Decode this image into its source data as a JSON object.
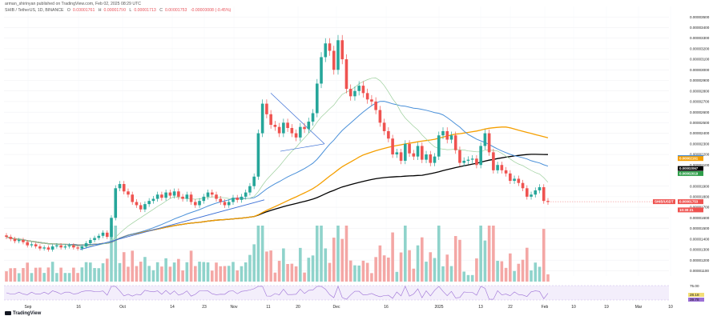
{
  "header": {
    "published_line": "arman_shirinyan published on TradingView.com, Feb 02, 2025 08:29 UTC",
    "symbol_line": "SHIB / TetherUS, 1D, BINANCE",
    "ohlc": [
      {
        "label": "O",
        "value": "0.00001761"
      },
      {
        "label": "H",
        "value": "0.00001790"
      },
      {
        "label": "L",
        "value": "0.00001713"
      },
      {
        "label": "C",
        "value": "0.00001753"
      },
      {
        "label": "",
        "value": "-0.00000008 (-0.45%)"
      }
    ]
  },
  "logo_text": "TradingView",
  "colors": {
    "up": "#26a69a",
    "down": "#ef5350",
    "vol_up": "#8fd3cb",
    "vol_down": "#f4a7a5",
    "ma_black": "#000000",
    "ma_orange": "#f59f00",
    "ma_blue": "#4a90d9",
    "ma_green": "#9ccf9c",
    "trendline": "#3b6fd6",
    "rsi": "#9c6fd6"
  },
  "chart_data": {
    "type": "candlestick",
    "x_ticks": [
      "Sep",
      "16",
      "Oct",
      "14",
      "23",
      "Nov",
      "11",
      "20",
      "Dec",
      "16",
      "2025",
      "13",
      "22",
      "Feb",
      "10",
      "19",
      "Mar",
      "10"
    ],
    "y_ticks": [
      "0.00003500",
      "0.00003400",
      "0.00003300",
      "0.00003200",
      "0.00003100",
      "0.00003000",
      "0.00002900",
      "0.00002800",
      "0.00002700",
      "0.00002600",
      "0.00002500",
      "0.00002400",
      "0.00002300",
      "0.00002200",
      "0.00002100",
      "0.00001900",
      "0.00001800",
      "0.00001700",
      "0.00001600",
      "0.00001500",
      "0.00001400",
      "0.00001300",
      "0.00001200",
      "0.00001100"
    ],
    "ylim": [
      1.05e-05,
      3.6e-05
    ],
    "price_tags": [
      {
        "label": "0.00002170",
        "value": 2.17e-05,
        "color": "#4a90d9"
      },
      {
        "label": "0.00002161",
        "value": 2.161e-05,
        "color": "#f59f00"
      },
      {
        "label": "0.00002067",
        "value": 2.067e-05,
        "color": "#000000"
      },
      {
        "label": "0.00002019",
        "value": 2.019e-05,
        "color": "#2e9e4a"
      },
      {
        "label": "0.00001753",
        "value": 1.753e-05,
        "color": "#ef5350"
      },
      {
        "label": "10:30:21",
        "value": 1.713e-05,
        "color": "#ef5350"
      }
    ],
    "left_tag": {
      "label": "SHIB/USDT",
      "value": 1.753e-05
    },
    "candles_close": [
      1.42e-05,
      1.4e-05,
      1.38e-05,
      1.39e-05,
      1.37e-05,
      1.34e-05,
      1.35e-05,
      1.33e-05,
      1.31e-05,
      1.32e-05,
      1.3e-05,
      1.33e-05,
      1.34e-05,
      1.32e-05,
      1.33e-05,
      1.34e-05,
      1.32e-05,
      1.31e-05,
      1.33e-05,
      1.36e-05,
      1.39e-05,
      1.41e-05,
      1.43e-05,
      1.46e-05,
      1.42e-05,
      1.6e-05,
      1.88e-05,
      1.92e-05,
      1.85e-05,
      1.82e-05,
      1.75e-05,
      1.72e-05,
      1.68e-05,
      1.73e-05,
      1.76e-05,
      1.78e-05,
      1.82e-05,
      1.79e-05,
      1.84e-05,
      1.81e-05,
      1.85e-05,
      1.8e-05,
      1.78e-05,
      1.82e-05,
      1.75e-05,
      1.72e-05,
      1.76e-05,
      1.8e-05,
      1.84e-05,
      1.82e-05,
      1.78e-05,
      1.75e-05,
      1.72e-05,
      1.75e-05,
      1.79e-05,
      1.77e-05,
      1.8e-05,
      1.84e-05,
      1.9e-05,
      1.99e-05,
      2.4e-05,
      2.68e-05,
      2.58e-05,
      2.48e-05,
      2.46e-05,
      2.4e-05,
      2.5e-05,
      2.45e-05,
      2.4e-05,
      2.36e-05,
      2.46e-05,
      2.44e-05,
      2.51e-05,
      2.59e-05,
      2.87e-05,
      3.12e-05,
      3.25e-05,
      3.18e-05,
      3e-05,
      3.28e-05,
      3.1e-05,
      2.82e-05,
      2.75e-05,
      2.8e-05,
      2.85e-05,
      2.78e-05,
      2.72e-05,
      2.7e-05,
      2.62e-05,
      2.5e-05,
      2.42e-05,
      2.35e-05,
      2.2e-05,
      2.22e-05,
      2.14e-05,
      2.3e-05,
      2.21e-05,
      2.18e-05,
      2.28e-05,
      2.15e-05,
      2.2e-05,
      2.12e-05,
      2.18e-05,
      2.38e-05,
      2.42e-05,
      2.34e-05,
      2.38e-05,
      2.24e-05,
      2.12e-05,
      2.14e-05,
      2.15e-05,
      2.16e-05,
      2.1e-05,
      2.28e-05,
      2.4e-05,
      2.22e-05,
      2.05e-05,
      2.1e-05,
      2.05e-05,
      2.02e-05,
      1.95e-05,
      1.97e-05,
      1.93e-05,
      1.88e-05,
      1.8e-05,
      1.82e-05,
      1.86e-05,
      1.89e-05,
      1.76e-05,
      1.75e-05
    ],
    "rsi_levels": [
      "75.00",
      "28.18",
      "39.78"
    ]
  }
}
